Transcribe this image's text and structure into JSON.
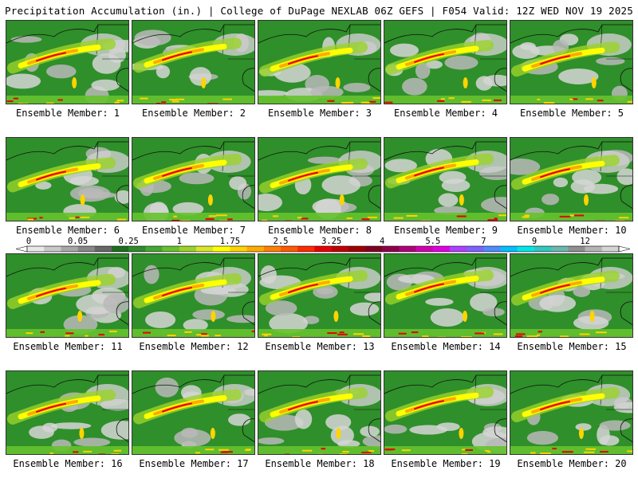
{
  "header": {
    "left": "Precipitation Accumulation (in.) | College of DuPage NEXLAB",
    "right": "06Z GEFS | F054 Valid: 12Z WED NOV 19 2025"
  },
  "member_label_prefix": "Ensemble Member: ",
  "members": [
    "1",
    "2",
    "3",
    "4",
    "5",
    "6",
    "7",
    "8",
    "9",
    "10",
    "11",
    "12",
    "13",
    "14",
    "15",
    "16",
    "17",
    "18",
    "19",
    "20"
  ],
  "colorbar": {
    "tick_labels": [
      "0",
      "0.05",
      "0.25",
      "1",
      "1.75",
      "2.5",
      "3.25",
      "4",
      "5.5",
      "7",
      "9",
      "12"
    ],
    "colors": [
      "#e8e8e8",
      "#c8c8c8",
      "#a8a8a8",
      "#888888",
      "#686868",
      "#1e6e1e",
      "#2e8b2e",
      "#46a832",
      "#66c22e",
      "#9ad22a",
      "#d8e628",
      "#ffff00",
      "#ffd400",
      "#ffaa00",
      "#ff8000",
      "#ff5a00",
      "#ff2a00",
      "#e60000",
      "#c00000",
      "#a00000",
      "#800020",
      "#90004a",
      "#b0007a",
      "#d000b0",
      "#e000e0",
      "#b040ff",
      "#8060ff",
      "#4c8cff",
      "#00c0ff",
      "#00e6e6",
      "#30c8c0",
      "#6ab8b0",
      "#909090",
      "#b4b4b4",
      "#d4d4d4"
    ]
  }
}
